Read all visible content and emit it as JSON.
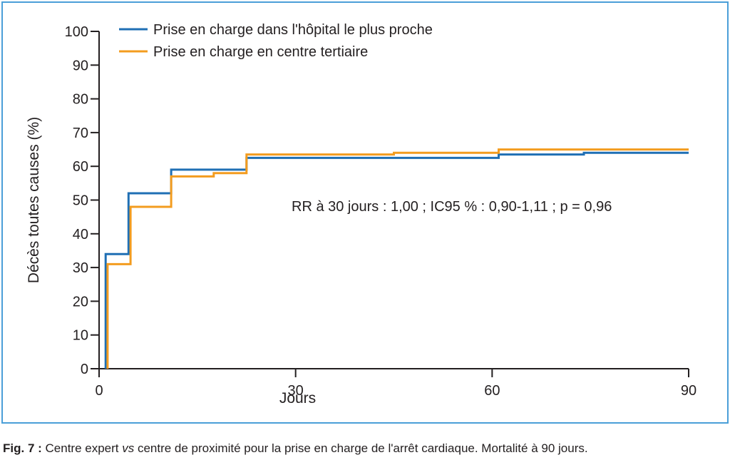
{
  "chart_data": {
    "type": "line",
    "step": true,
    "ylabel": "Décès toutes causes (%)",
    "xlabel": "Jours",
    "xlim": [
      0,
      90
    ],
    "ylim": [
      0,
      100
    ],
    "x_ticks": [
      0,
      30,
      60,
      90
    ],
    "y_ticks": [
      0,
      10,
      20,
      30,
      40,
      50,
      60,
      70,
      80,
      90,
      100
    ],
    "legend_position": "top-left",
    "annotation": "RR à 30 jours : 1,00 ; IC95 % : 0,90-1,11 ; p = 0,96",
    "series": [
      {
        "name": "Prise en charge dans l'hôpital le plus proche",
        "color": "#1f6fb4",
        "points": [
          [
            1,
            0
          ],
          [
            1,
            34
          ],
          [
            4.5,
            34
          ],
          [
            4.5,
            52
          ],
          [
            11,
            52
          ],
          [
            11,
            59
          ],
          [
            22.5,
            59
          ],
          [
            22.5,
            62.5
          ],
          [
            61,
            62.5
          ],
          [
            61,
            63.5
          ],
          [
            74,
            63.5
          ],
          [
            74,
            64
          ],
          [
            90,
            64
          ]
        ]
      },
      {
        "name": "Prise en charge en centre tertiaire",
        "color": "#f39c1f",
        "points": [
          [
            1.3,
            0
          ],
          [
            1.3,
            31
          ],
          [
            4.8,
            31
          ],
          [
            4.8,
            48
          ],
          [
            11,
            48
          ],
          [
            11,
            57
          ],
          [
            17.5,
            57
          ],
          [
            17.5,
            58
          ],
          [
            22.5,
            58
          ],
          [
            22.5,
            63.5
          ],
          [
            45,
            63.5
          ],
          [
            45,
            64
          ],
          [
            61,
            64
          ],
          [
            61,
            65
          ],
          [
            90,
            65
          ]
        ]
      }
    ]
  },
  "caption": {
    "label": "Fig. 7 :",
    "text_before": " Centre expert ",
    "text_italic": "vs",
    "text_after": " centre de proximité pour la prise en charge de l'arrêt cardiaque. Mortalité à 90 jours."
  }
}
